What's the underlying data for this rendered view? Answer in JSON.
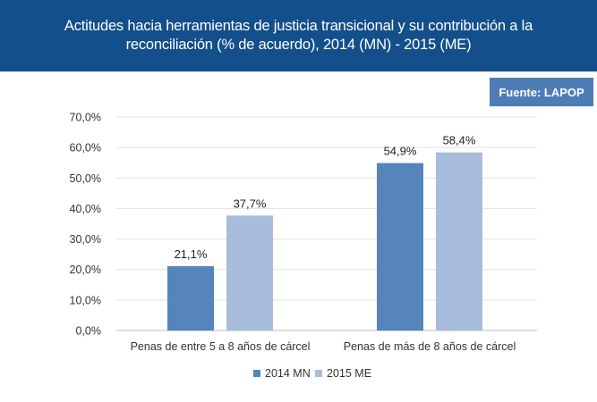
{
  "header": {
    "title": "Actitudes hacia herramientas de justicia transicional y su contribución a la reconciliación (% de acuerdo), 2014 (MN) - 2015 (ME)",
    "source": "Fuente: LAPOP"
  },
  "chart_data": {
    "type": "bar",
    "categories": [
      "Penas de entre 5 a 8 años de cárcel",
      "Penas de más de 8 años de cárcel"
    ],
    "series": [
      {
        "name": "2014 MN",
        "values": [
          21.1,
          54.9
        ],
        "labels": [
          "21,1%",
          "54,9%"
        ],
        "color": "#5585bb"
      },
      {
        "name": "2015 ME",
        "values": [
          37.7,
          58.4
        ],
        "labels": [
          "37,7%",
          "58,4%"
        ],
        "color": "#a8bcdc"
      }
    ],
    "ylim": [
      0,
      70
    ],
    "yticks": [
      0,
      10,
      20,
      30,
      40,
      50,
      60,
      70
    ],
    "ytick_labels": [
      "0,0%",
      "10,0%",
      "20,0%",
      "30,0%",
      "40,0%",
      "50,0%",
      "60,0%",
      "70,0%"
    ],
    "grid": true,
    "legend_position": "bottom",
    "title": "Actitudes hacia herramientas de justicia transicional y su contribución a la reconciliación (% de acuerdo), 2014 (MN) - 2015 (ME)",
    "xlabel": "",
    "ylabel": ""
  }
}
